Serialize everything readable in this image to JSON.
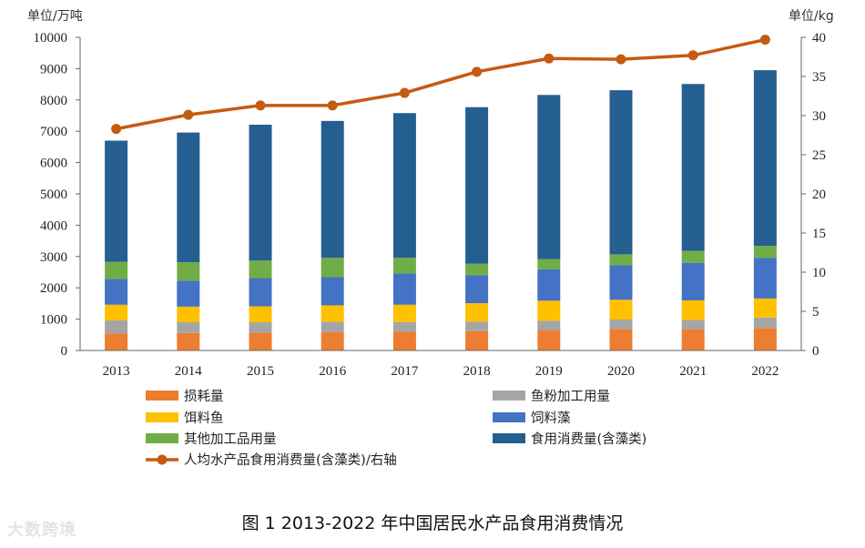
{
  "chart_data": {
    "type": "bar",
    "stacked": true,
    "categories": [
      "2013",
      "2014",
      "2015",
      "2016",
      "2017",
      "2018",
      "2019",
      "2020",
      "2021",
      "2022"
    ],
    "series": [
      {
        "name": "损耗量",
        "color": "#ED7D31",
        "values": [
          540,
          560,
          570,
          580,
          600,
          620,
          640,
          680,
          680,
          720
        ]
      },
      {
        "name": "鱼粉加工用量",
        "color": "#A5A5A5",
        "values": [
          420,
          340,
          330,
          340,
          310,
          300,
          310,
          310,
          300,
          330
        ]
      },
      {
        "name": "饵料鱼",
        "color": "#FFC000",
        "values": [
          500,
          500,
          510,
          520,
          550,
          590,
          640,
          630,
          620,
          610
        ]
      },
      {
        "name": "饲料藻",
        "color": "#4472C4",
        "values": [
          820,
          830,
          900,
          900,
          1000,
          890,
          1000,
          1100,
          1200,
          1300
        ]
      },
      {
        "name": "其他加工品用量",
        "color": "#70AD47",
        "values": [
          550,
          590,
          560,
          620,
          500,
          370,
          330,
          350,
          380,
          380
        ]
      },
      {
        "name": "食用消费量(含藻类)",
        "color": "#255E91",
        "values": [
          3870,
          4140,
          4340,
          4370,
          4620,
          5000,
          5240,
          5240,
          5330,
          5610
        ]
      }
    ],
    "line_series": {
      "name": "人均水产品食用消费量(含藻类)/右轴",
      "color": "#C55A11",
      "values": [
        28.3,
        30.1,
        31.3,
        31.3,
        32.9,
        35.6,
        37.3,
        37.2,
        37.7,
        39.7
      ]
    },
    "ylim": [
      0,
      10000
    ],
    "y_ticks": [
      "0",
      "1000",
      "2000",
      "3000",
      "4000",
      "5000",
      "6000",
      "7000",
      "8000",
      "9000",
      "10000"
    ],
    "y2lim": [
      0,
      40
    ],
    "y2_ticks": [
      "0",
      "5",
      "10",
      "15",
      "20",
      "25",
      "30",
      "35",
      "40"
    ],
    "ylabel": "单位/万吨",
    "y2label": "单位/kg",
    "legend_position": "bottom",
    "title": "图 1  2013-2022 年中国居民水产品食用消费情况"
  },
  "watermark": "大数跨境"
}
